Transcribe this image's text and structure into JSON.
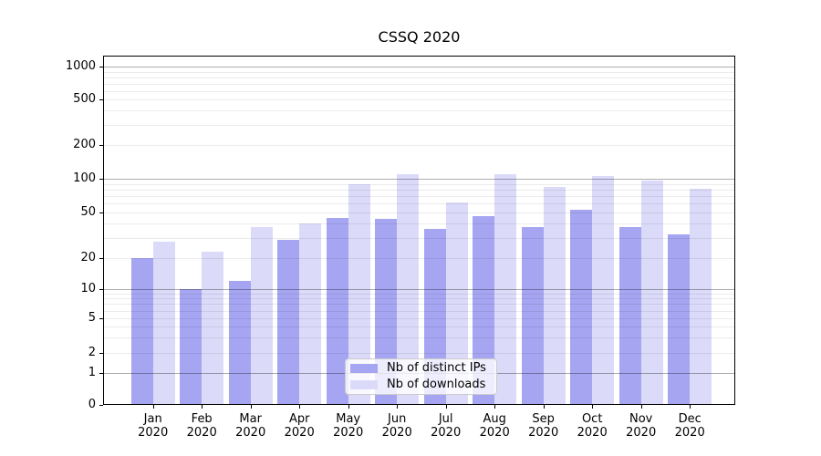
{
  "chart_data": {
    "type": "bar",
    "title": "CSSQ 2020",
    "categories": [
      "Jan",
      "Feb",
      "Mar",
      "Apr",
      "May",
      "Jun",
      "Jul",
      "Aug",
      "Sep",
      "Oct",
      "Nov",
      "Dec"
    ],
    "year_label": "2020",
    "series": [
      {
        "name": "Nb of distinct IPs",
        "color": "#a5a5f2",
        "values": [
          20,
          10,
          12,
          29,
          45,
          44,
          36,
          46,
          37,
          53,
          37,
          32
        ]
      },
      {
        "name": "Nb of downloads",
        "color": "#dbdbf9",
        "values": [
          28,
          23,
          37,
          40,
          90,
          110,
          61,
          110,
          84,
          105,
          96,
          82
        ]
      }
    ],
    "yscale": "symlog",
    "yticks": [
      0,
      1,
      2,
      5,
      10,
      20,
      50,
      100,
      200,
      500,
      1000
    ],
    "ylim": [
      0,
      1260
    ],
    "grid": true,
    "legend_position": "lower center",
    "xlabel": "",
    "ylabel": ""
  }
}
